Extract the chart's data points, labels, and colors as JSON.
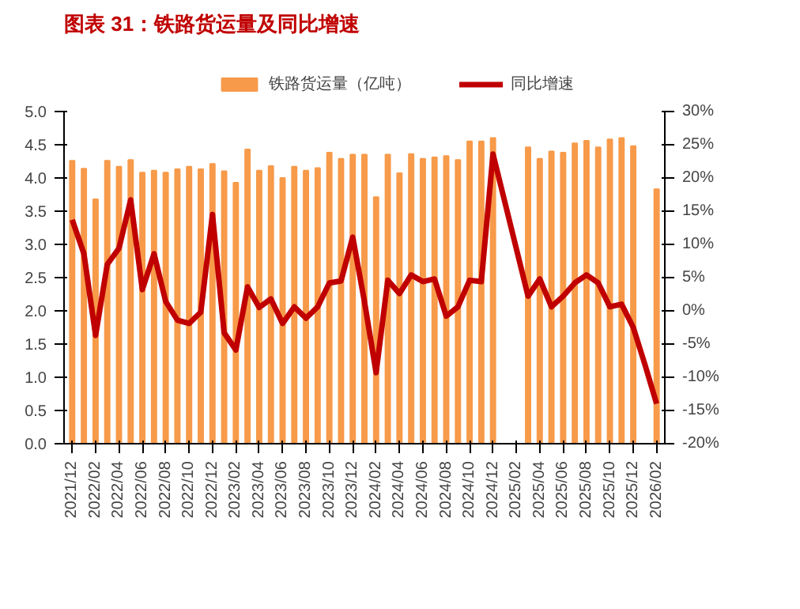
{
  "chart_data": {
    "type": "bar",
    "title": "图表 31：铁路货运量及同比增速",
    "categories": [
      "2021/12",
      null,
      "2022/02",
      null,
      "2022/04",
      null,
      "2022/06",
      null,
      "2022/08",
      null,
      "2022/10",
      null,
      "2022/12",
      null,
      "2023/02",
      null,
      "2023/04",
      null,
      "2023/06",
      null,
      "2023/08",
      null,
      "2023/10",
      null,
      "2023/12",
      null,
      "2024/02",
      null,
      "2024/04",
      null,
      "2024/06",
      null,
      "2024/08",
      null,
      "2024/10",
      null,
      "2024/12",
      null,
      "2025/02",
      null,
      "2025/04",
      null,
      "2025/06",
      null,
      "2025/08",
      null,
      "2025/10",
      null,
      "2025/12",
      null,
      "2026/02"
    ],
    "series": [
      {
        "name": "铁路货运量（亿吨）",
        "color": "#f79a4a",
        "values": [
          4.26,
          4.14,
          3.68,
          4.26,
          4.17,
          4.27,
          4.08,
          4.11,
          4.08,
          4.13,
          4.17,
          4.13,
          4.21,
          4.1,
          3.93,
          4.43,
          4.11,
          4.18,
          4.0,
          4.17,
          4.11,
          4.15,
          4.38,
          4.29,
          4.35,
          4.35,
          3.71,
          4.35,
          4.07,
          4.36,
          4.29,
          4.31,
          4.33,
          4.27,
          4.55,
          4.55,
          4.6,
          null,
          null,
          4.46,
          4.29,
          4.4,
          4.38,
          4.52,
          4.56,
          4.46,
          4.58,
          4.6,
          4.48,
          null,
          3.83
        ]
      },
      {
        "name": "同比增速",
        "type": "line",
        "axis": "y2",
        "color": "#c00000",
        "values": [
          13.7,
          8.6,
          -3.7,
          7.0,
          9.4,
          16.7,
          3.2,
          8.6,
          1.4,
          -1.4,
          -1.9,
          -0.2,
          14.5,
          -3.3,
          -5.9,
          3.6,
          0.5,
          1.8,
          -1.9,
          0.6,
          -1.1,
          0.6,
          4.2,
          4.5,
          11.1,
          1.4,
          -9.3,
          4.6,
          2.6,
          5.4,
          4.4,
          4.8,
          -0.8,
          0.6,
          4.6,
          4.4,
          23.6,
          null,
          null,
          2.2,
          4.8,
          0.6,
          2.2,
          4.2,
          5.4,
          4.2,
          0.6,
          1.0,
          -2.5,
          -8.1,
          -14.0
        ]
      }
    ],
    "ylim": [
      0,
      5
    ],
    "yticks": [
      {
        "value": 0,
        "label": "0.0"
      },
      {
        "value": 0.5,
        "label": "0.5"
      },
      {
        "value": 1,
        "label": "1.0"
      },
      {
        "value": 1.5,
        "label": "1.5"
      },
      {
        "value": 2,
        "label": "2.0"
      },
      {
        "value": 2.5,
        "label": "2.5"
      },
      {
        "value": 3,
        "label": "3.0"
      },
      {
        "value": 3.5,
        "label": "3.5"
      },
      {
        "value": 4,
        "label": "4.0"
      },
      {
        "value": 4.5,
        "label": "4.5"
      },
      {
        "value": 5,
        "label": "5.0"
      }
    ],
    "y2lim": [
      -20,
      30
    ],
    "y2ticks": [
      {
        "value": -20,
        "label": "-20%"
      },
      {
        "value": -15,
        "label": "-15%"
      },
      {
        "value": -10,
        "label": "-10%"
      },
      {
        "value": -5,
        "label": "-5%"
      },
      {
        "value": 0,
        "label": "0%"
      },
      {
        "value": 5,
        "label": "5%"
      },
      {
        "value": 10,
        "label": "10%"
      },
      {
        "value": 15,
        "label": "15%"
      },
      {
        "value": 20,
        "label": "20%"
      },
      {
        "value": 25,
        "label": "25%"
      },
      {
        "value": 30,
        "label": "30%"
      }
    ],
    "legend": "top",
    "grid": false,
    "line_style": "solid",
    "marker": "none"
  }
}
